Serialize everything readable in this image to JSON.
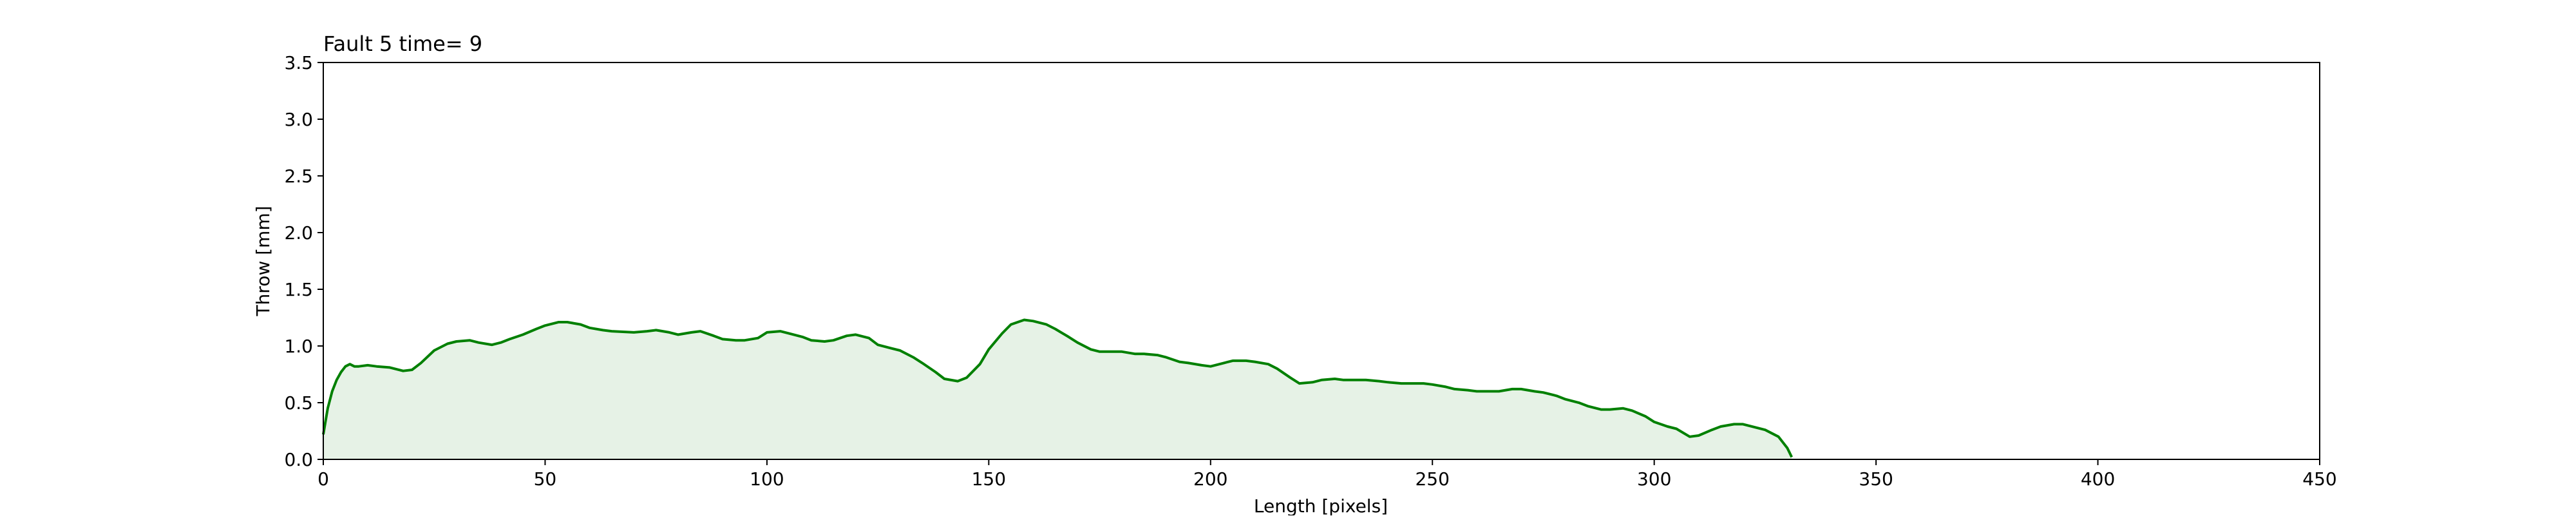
{
  "chart_data": {
    "type": "area",
    "title": "Fault 5 time= 9",
    "xlabel": "Length [pixels]",
    "ylabel": "Throw [mm]",
    "xlim": [
      0,
      450
    ],
    "ylim": [
      0,
      3.5
    ],
    "xticks": [
      0,
      50,
      100,
      150,
      200,
      250,
      300,
      350,
      400,
      450
    ],
    "yticks": [
      0.0,
      0.5,
      1.0,
      1.5,
      2.0,
      2.5,
      3.0,
      3.5
    ],
    "grid": false,
    "line_color": "#008000",
    "fill_color": "#e6f2e6",
    "series": [
      {
        "x": [
          0,
          1,
          2,
          3,
          4,
          5,
          6,
          7,
          8,
          10,
          12,
          15,
          18,
          20,
          22,
          25,
          28,
          30,
          33,
          35,
          38,
          40,
          42,
          45,
          48,
          50,
          53,
          55,
          58,
          60,
          63,
          65,
          70,
          73,
          75,
          78,
          80,
          83,
          85,
          88,
          90,
          93,
          95,
          98,
          100,
          103,
          105,
          108,
          110,
          113,
          115,
          118,
          120,
          123,
          125,
          128,
          130,
          133,
          135,
          138,
          140,
          143,
          145,
          148,
          150,
          153,
          155,
          158,
          160,
          163,
          165,
          168,
          170,
          173,
          175,
          178,
          180,
          183,
          185,
          188,
          190,
          193,
          195,
          198,
          200,
          203,
          205,
          208,
          210,
          213,
          215,
          218,
          220,
          223,
          225,
          228,
          230,
          233,
          235,
          238,
          240,
          243,
          245,
          248,
          250,
          253,
          255,
          258,
          260,
          263,
          265,
          268,
          270,
          273,
          275,
          278,
          280,
          283,
          285,
          288,
          290,
          293,
          295,
          298,
          300,
          303,
          305,
          308,
          310,
          313,
          315,
          318,
          320,
          323,
          325,
          328,
          330,
          331
        ],
        "y": [
          0.22,
          0.45,
          0.6,
          0.7,
          0.77,
          0.82,
          0.84,
          0.82,
          0.82,
          0.83,
          0.82,
          0.81,
          0.78,
          0.79,
          0.85,
          0.96,
          1.02,
          1.04,
          1.05,
          1.03,
          1.01,
          1.03,
          1.06,
          1.1,
          1.15,
          1.18,
          1.21,
          1.21,
          1.19,
          1.16,
          1.14,
          1.13,
          1.12,
          1.13,
          1.14,
          1.12,
          1.1,
          1.12,
          1.13,
          1.09,
          1.06,
          1.05,
          1.05,
          1.07,
          1.12,
          1.13,
          1.11,
          1.08,
          1.05,
          1.04,
          1.05,
          1.09,
          1.1,
          1.07,
          1.01,
          0.98,
          0.96,
          0.9,
          0.85,
          0.77,
          0.71,
          0.69,
          0.72,
          0.84,
          0.97,
          1.11,
          1.19,
          1.23,
          1.22,
          1.19,
          1.15,
          1.08,
          1.03,
          0.97,
          0.95,
          0.95,
          0.95,
          0.93,
          0.93,
          0.92,
          0.9,
          0.86,
          0.85,
          0.83,
          0.82,
          0.85,
          0.87,
          0.87,
          0.86,
          0.84,
          0.8,
          0.72,
          0.67,
          0.68,
          0.7,
          0.71,
          0.7,
          0.7,
          0.7,
          0.69,
          0.68,
          0.67,
          0.67,
          0.67,
          0.66,
          0.64,
          0.62,
          0.61,
          0.6,
          0.6,
          0.6,
          0.62,
          0.62,
          0.6,
          0.59,
          0.56,
          0.53,
          0.5,
          0.47,
          0.44,
          0.44,
          0.45,
          0.43,
          0.38,
          0.33,
          0.29,
          0.27,
          0.2,
          0.21,
          0.26,
          0.29,
          0.31,
          0.31,
          0.28,
          0.26,
          0.2,
          0.1,
          0.02
        ]
      }
    ]
  }
}
